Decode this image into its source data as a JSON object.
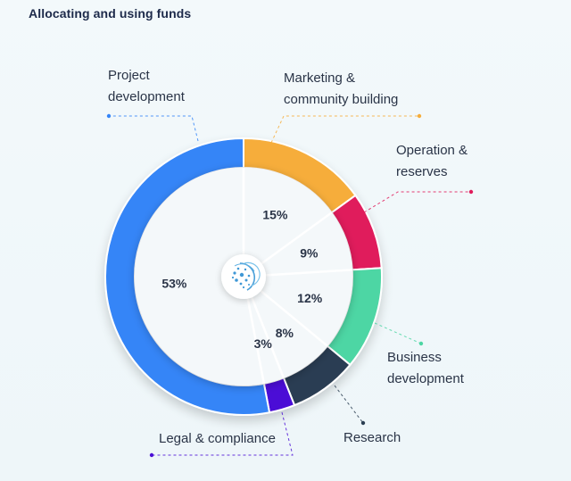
{
  "title": "Allocating and using funds",
  "chart_data": {
    "type": "pie",
    "title": "Allocating and using funds",
    "categories": [
      "Marketing & community building",
      "Operation & reserves",
      "Business development",
      "Research",
      "Legal & compliance",
      "Project development"
    ],
    "values": [
      15,
      9,
      12,
      8,
      3,
      53
    ],
    "value_labels": [
      "15%",
      "9%",
      "12%",
      "8%",
      "3%",
      "53%"
    ],
    "category_lines": [
      [
        "Marketing &",
        "community building"
      ],
      [
        "Operation &",
        "reserves"
      ],
      [
        "Business",
        "development"
      ],
      [
        "Research"
      ],
      [
        "Legal & compliance"
      ],
      [
        "Project",
        "development"
      ]
    ],
    "colors": [
      "#f6ad3a",
      "#e01c5b",
      "#4dd6a4",
      "#2b3e52",
      "#4b0fd6",
      "#3585f7"
    ],
    "legend": "callouts",
    "center_icon": "network-sphere-logo-icon"
  }
}
